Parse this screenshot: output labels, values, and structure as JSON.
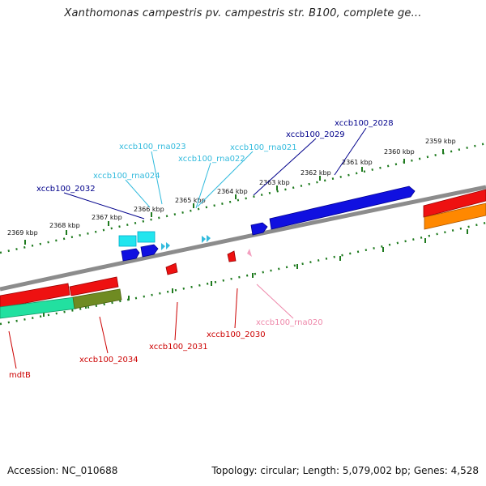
{
  "title": "Xanthomonas campestris pv. campestris str. B100, complete ge...",
  "footer": {
    "accession": "Accession: NC_010688",
    "summary": "Topology: circular; Length: 5,079,002 bp; Genes: 4,528"
  },
  "scale_ticks": [
    {
      "label": "2359 kbp"
    },
    {
      "label": "2360 kbp"
    },
    {
      "label": "2361 kbp"
    },
    {
      "label": "2362 kbp"
    },
    {
      "label": "2363 kbp"
    },
    {
      "label": "2364 kbp"
    },
    {
      "label": "2365 kbp"
    },
    {
      "label": "2366 kbp"
    },
    {
      "label": "2367 kbp"
    },
    {
      "label": "2368 kbp"
    },
    {
      "label": "2369 kbp"
    }
  ],
  "genes": [
    {
      "label": "xccb100_2028",
      "color": "#00008b",
      "strand": "+"
    },
    {
      "label": "xccb100_2029",
      "color": "#00008b",
      "strand": "+"
    },
    {
      "label": "xccb100_rna021",
      "color": "#33bbdd",
      "strand": "+"
    },
    {
      "label": "xccb100_rna022",
      "color": "#33bbdd",
      "strand": "+"
    },
    {
      "label": "xccb100_rna023",
      "color": "#33bbdd",
      "strand": "+"
    },
    {
      "label": "xccb100_rna024",
      "color": "#33bbdd",
      "strand": "+"
    },
    {
      "label": "xccb100_2032",
      "color": "#00008b",
      "strand": "+"
    },
    {
      "label": "xccb100_rna020",
      "color": "#ee88aa",
      "strand": "-"
    },
    {
      "label": "xccb100_2030",
      "color": "#cc0000",
      "strand": "-"
    },
    {
      "label": "xccb100_2031",
      "color": "#cc0000",
      "strand": "-"
    },
    {
      "label": "xccb100_2034",
      "color": "#cc0000",
      "strand": "-"
    },
    {
      "label": "mdtB",
      "color": "#cc0000",
      "strand": "-"
    }
  ]
}
